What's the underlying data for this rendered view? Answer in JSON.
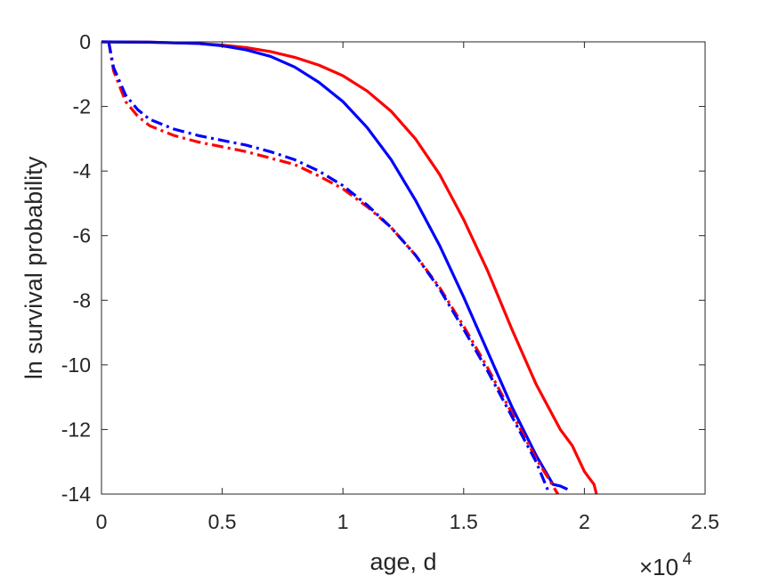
{
  "chart_data": {
    "type": "line",
    "xlabel": "age, d",
    "ylabel": "ln survival probability",
    "x_exponent_label": {
      "base": "×10",
      "exp": "4"
    },
    "xlim": [
      0,
      25000
    ],
    "ylim": [
      -14,
      0
    ],
    "x_ticks": [
      0,
      5000,
      10000,
      15000,
      20000,
      25000
    ],
    "x_tick_labels": [
      "0",
      "0.5",
      "1",
      "1.5",
      "2",
      "2.5"
    ],
    "y_ticks": [
      0,
      -2,
      -4,
      -6,
      -8,
      -10,
      -12,
      -14
    ],
    "y_tick_labels": [
      "0",
      "-2",
      "-4",
      "-6",
      "-8",
      "-10",
      "-12",
      "-14"
    ],
    "grid": false,
    "series": [
      {
        "color": "#ff0000",
        "style": "solid",
        "x": [
          0,
          2000,
          4000,
          5000,
          6000,
          7000,
          8000,
          9000,
          10000,
          11000,
          12000,
          13000,
          14000,
          15000,
          16000,
          17000,
          18000,
          19000,
          19500,
          20000,
          20200,
          20400,
          20500
        ],
        "y": [
          0,
          -0.01,
          -0.05,
          -0.1,
          -0.18,
          -0.3,
          -0.48,
          -0.72,
          -1.05,
          -1.52,
          -2.15,
          -3.0,
          -4.1,
          -5.5,
          -7.1,
          -8.9,
          -10.6,
          -12.0,
          -12.5,
          -13.3,
          -13.5,
          -13.7,
          -14.0
        ]
      },
      {
        "color": "#0000ff",
        "style": "solid",
        "x": [
          0,
          2000,
          4000,
          5000,
          6000,
          7000,
          8000,
          9000,
          10000,
          11000,
          12000,
          13000,
          14000,
          15000,
          16000,
          17000,
          18000,
          18700,
          19000,
          19300
        ],
        "y": [
          0,
          -0.01,
          -0.05,
          -0.12,
          -0.25,
          -0.45,
          -0.78,
          -1.25,
          -1.85,
          -2.65,
          -3.65,
          -4.9,
          -6.3,
          -7.9,
          -9.6,
          -11.3,
          -12.8,
          -13.7,
          -13.75,
          -13.85
        ]
      },
      {
        "color": "#ff0000",
        "style": "dashdot",
        "x": [
          300,
          500,
          1000,
          1500,
          2000,
          3000,
          4000,
          5000,
          6000,
          7000,
          8000,
          9000,
          10000,
          11000,
          12000,
          13000,
          14000,
          15000,
          16000,
          17000,
          18000,
          18500,
          18900
        ],
        "y": [
          0,
          -0.9,
          -1.85,
          -2.3,
          -2.6,
          -2.9,
          -3.1,
          -3.25,
          -3.4,
          -3.6,
          -3.8,
          -4.15,
          -4.55,
          -5.1,
          -5.75,
          -6.6,
          -7.6,
          -8.8,
          -10.1,
          -11.5,
          -12.9,
          -13.5,
          -14.0
        ]
      },
      {
        "color": "#0000ff",
        "style": "dashdot",
        "x": [
          300,
          500,
          1000,
          1500,
          2000,
          3000,
          4000,
          5000,
          6000,
          7000,
          8000,
          9000,
          10000,
          11000,
          12000,
          13000,
          14000,
          15000,
          16000,
          17000,
          18000,
          18500
        ],
        "y": [
          0,
          -0.8,
          -1.65,
          -2.1,
          -2.4,
          -2.7,
          -2.9,
          -3.05,
          -3.2,
          -3.4,
          -3.65,
          -4.0,
          -4.45,
          -5.05,
          -5.75,
          -6.6,
          -7.65,
          -8.9,
          -10.2,
          -11.6,
          -13.0,
          -13.9
        ]
      }
    ]
  }
}
